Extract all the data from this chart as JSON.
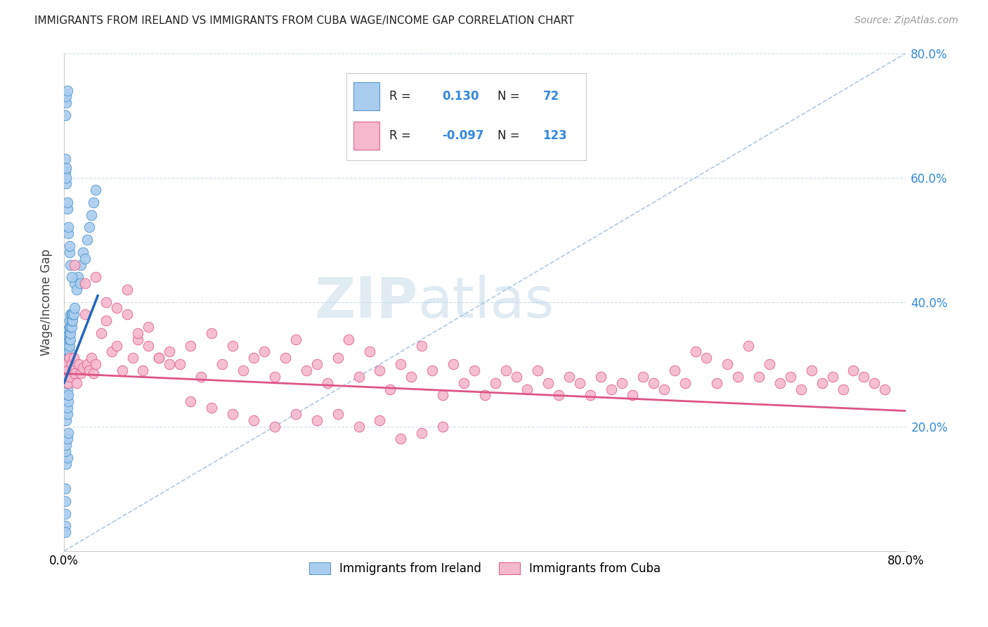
{
  "title": "IMMIGRANTS FROM IRELAND VS IMMIGRANTS FROM CUBA WAGE/INCOME GAP CORRELATION CHART",
  "source": "Source: ZipAtlas.com",
  "ylabel": "Wage/Income Gap",
  "legend_ireland": "Immigrants from Ireland",
  "legend_cuba": "Immigrants from Cuba",
  "ireland_R": 0.13,
  "ireland_N": 72,
  "cuba_R": -0.097,
  "cuba_N": 123,
  "ireland_color": "#aaccee",
  "ireland_edge_color": "#5599cc",
  "cuba_color": "#f5b8cc",
  "cuba_edge_color": "#e06090",
  "ireland_line_color": "#2266bb",
  "cuba_line_color": "#dd5588",
  "diag_color": "#99bbdd",
  "grid_color": "#ccddee",
  "xlim": [
    0.0,
    0.8
  ],
  "ylim": [
    0.0,
    0.8
  ],
  "ireland_scatter_x": [
    0.001,
    0.001,
    0.001,
    0.001,
    0.001,
    0.002,
    0.002,
    0.002,
    0.002,
    0.002,
    0.002,
    0.002,
    0.002,
    0.002,
    0.003,
    0.003,
    0.003,
    0.003,
    0.003,
    0.003,
    0.003,
    0.003,
    0.003,
    0.003,
    0.003,
    0.003,
    0.003,
    0.003,
    0.003,
    0.003,
    0.003,
    0.004,
    0.004,
    0.004,
    0.004,
    0.004,
    0.004,
    0.004,
    0.004,
    0.004,
    0.004,
    0.004,
    0.005,
    0.005,
    0.005,
    0.005,
    0.005,
    0.005,
    0.005,
    0.006,
    0.006,
    0.006,
    0.006,
    0.007,
    0.007,
    0.007,
    0.008,
    0.008,
    0.009,
    0.01,
    0.01,
    0.012,
    0.013,
    0.015,
    0.016,
    0.018,
    0.02,
    0.022,
    0.024,
    0.026,
    0.028,
    0.03
  ],
  "ireland_scatter_y": [
    0.04,
    0.06,
    0.08,
    0.1,
    0.03,
    0.27,
    0.28,
    0.285,
    0.29,
    0.295,
    0.3,
    0.305,
    0.31,
    0.315,
    0.25,
    0.26,
    0.27,
    0.28,
    0.285,
    0.29,
    0.295,
    0.3,
    0.305,
    0.31,
    0.315,
    0.32,
    0.325,
    0.33,
    0.335,
    0.34,
    0.345,
    0.28,
    0.29,
    0.295,
    0.3,
    0.305,
    0.31,
    0.32,
    0.33,
    0.345,
    0.35,
    0.355,
    0.31,
    0.32,
    0.33,
    0.34,
    0.35,
    0.36,
    0.37,
    0.34,
    0.35,
    0.36,
    0.38,
    0.36,
    0.37,
    0.38,
    0.37,
    0.38,
    0.38,
    0.39,
    0.43,
    0.42,
    0.44,
    0.43,
    0.46,
    0.48,
    0.47,
    0.5,
    0.52,
    0.54,
    0.56,
    0.58
  ],
  "ireland_extra_x": [
    0.001,
    0.001,
    0.002,
    0.002,
    0.002,
    0.003,
    0.003,
    0.004,
    0.004,
    0.005,
    0.005,
    0.006,
    0.007,
    0.002,
    0.003,
    0.003,
    0.004,
    0.004,
    0.002,
    0.003,
    0.001,
    0.002,
    0.002,
    0.003,
    0.001,
    0.002,
    0.003,
    0.004
  ],
  "ireland_extra_y": [
    0.61,
    0.63,
    0.59,
    0.6,
    0.615,
    0.55,
    0.56,
    0.51,
    0.52,
    0.48,
    0.49,
    0.46,
    0.44,
    0.21,
    0.22,
    0.23,
    0.24,
    0.25,
    0.14,
    0.15,
    0.7,
    0.72,
    0.73,
    0.74,
    0.16,
    0.17,
    0.18,
    0.19
  ],
  "cuba_scatter_x": [
    0.001,
    0.002,
    0.003,
    0.004,
    0.005,
    0.006,
    0.007,
    0.008,
    0.009,
    0.01,
    0.012,
    0.014,
    0.016,
    0.018,
    0.02,
    0.022,
    0.024,
    0.026,
    0.028,
    0.03,
    0.035,
    0.04,
    0.045,
    0.05,
    0.055,
    0.06,
    0.065,
    0.07,
    0.075,
    0.08,
    0.09,
    0.1,
    0.11,
    0.12,
    0.13,
    0.14,
    0.15,
    0.16,
    0.17,
    0.18,
    0.19,
    0.2,
    0.21,
    0.22,
    0.23,
    0.24,
    0.25,
    0.26,
    0.27,
    0.28,
    0.29,
    0.3,
    0.31,
    0.32,
    0.33,
    0.34,
    0.35,
    0.36,
    0.37,
    0.38,
    0.39,
    0.4,
    0.41,
    0.42,
    0.43,
    0.44,
    0.45,
    0.46,
    0.47,
    0.48,
    0.49,
    0.5,
    0.51,
    0.52,
    0.53,
    0.54,
    0.55,
    0.56,
    0.57,
    0.58,
    0.59,
    0.6,
    0.61,
    0.62,
    0.63,
    0.64,
    0.65,
    0.66,
    0.67,
    0.68,
    0.69,
    0.7,
    0.71,
    0.72,
    0.73,
    0.74,
    0.75,
    0.76,
    0.77,
    0.78,
    0.01,
    0.02,
    0.03,
    0.04,
    0.05,
    0.06,
    0.07,
    0.08,
    0.09,
    0.1,
    0.12,
    0.14,
    0.16,
    0.18,
    0.2,
    0.22,
    0.24,
    0.26,
    0.28,
    0.3,
    0.32,
    0.34,
    0.36
  ],
  "cuba_scatter_y": [
    0.28,
    0.3,
    0.29,
    0.27,
    0.31,
    0.28,
    0.3,
    0.29,
    0.31,
    0.285,
    0.27,
    0.3,
    0.285,
    0.295,
    0.38,
    0.3,
    0.29,
    0.31,
    0.285,
    0.3,
    0.35,
    0.37,
    0.32,
    0.33,
    0.29,
    0.38,
    0.31,
    0.34,
    0.29,
    0.33,
    0.31,
    0.32,
    0.3,
    0.33,
    0.28,
    0.35,
    0.3,
    0.33,
    0.29,
    0.31,
    0.32,
    0.28,
    0.31,
    0.34,
    0.29,
    0.3,
    0.27,
    0.31,
    0.34,
    0.28,
    0.32,
    0.29,
    0.26,
    0.3,
    0.28,
    0.33,
    0.29,
    0.25,
    0.3,
    0.27,
    0.29,
    0.25,
    0.27,
    0.29,
    0.28,
    0.26,
    0.29,
    0.27,
    0.25,
    0.28,
    0.27,
    0.25,
    0.28,
    0.26,
    0.27,
    0.25,
    0.28,
    0.27,
    0.26,
    0.29,
    0.27,
    0.32,
    0.31,
    0.27,
    0.3,
    0.28,
    0.33,
    0.28,
    0.3,
    0.27,
    0.28,
    0.26,
    0.29,
    0.27,
    0.28,
    0.26,
    0.29,
    0.28,
    0.27,
    0.26,
    0.46,
    0.43,
    0.44,
    0.4,
    0.39,
    0.42,
    0.35,
    0.36,
    0.31,
    0.3,
    0.24,
    0.23,
    0.22,
    0.21,
    0.2,
    0.22,
    0.21,
    0.22,
    0.2,
    0.21,
    0.18,
    0.19,
    0.2
  ],
  "ireland_trend_x": [
    0.0,
    0.032
  ],
  "ireland_trend_y": [
    0.27,
    0.41
  ],
  "cuba_trend_x": [
    0.0,
    0.8
  ],
  "cuba_trend_y": [
    0.285,
    0.225
  ]
}
